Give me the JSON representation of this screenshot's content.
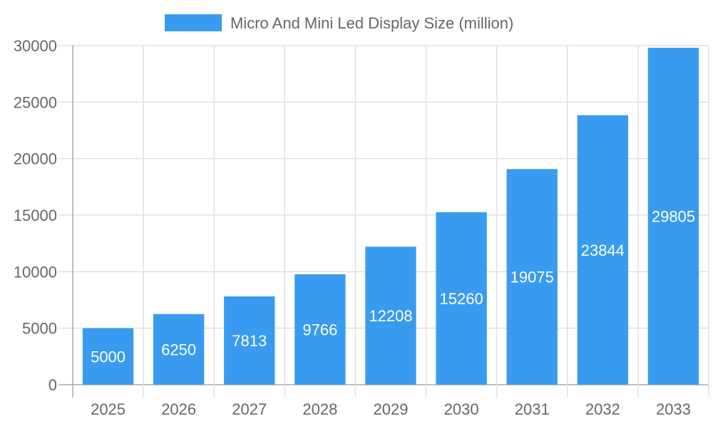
{
  "chart_data": {
    "type": "bar",
    "categories": [
      "2025",
      "2026",
      "2027",
      "2028",
      "2029",
      "2030",
      "2031",
      "2032",
      "2033"
    ],
    "series": [
      {
        "name": "Micro And Mini Led Display Size (million)",
        "values": [
          5000,
          6250,
          7813,
          9766,
          12208,
          15260,
          19075,
          23844,
          29805
        ],
        "color": "#389BEF"
      }
    ],
    "yticks": [
      "0",
      "5000",
      "10000",
      "15000",
      "20000",
      "25000",
      "30000"
    ],
    "ylim": [
      0,
      30000
    ],
    "grid": true,
    "legend": "top",
    "data_labels": true,
    "title": "",
    "xlabel": "",
    "ylabel": ""
  }
}
